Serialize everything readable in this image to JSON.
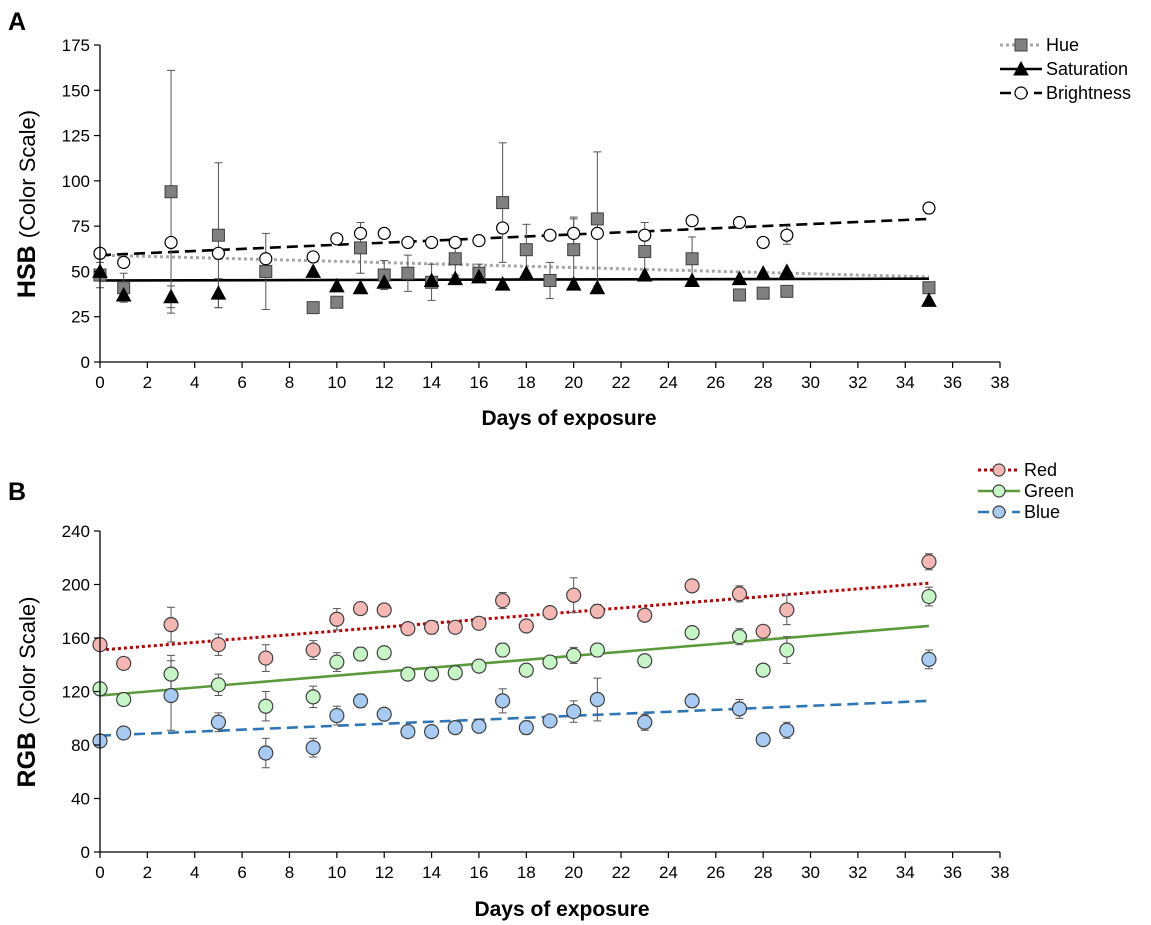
{
  "chart_data": [
    {
      "type": "scatter",
      "panel_label": "A",
      "ylabel_bold": "HSB",
      "ylabel_rest": "(Color Scale)",
      "xlabel": "Days of exposure",
      "xlim": [
        0,
        38
      ],
      "ylim": [
        0,
        175
      ],
      "xticks": [
        0,
        2,
        4,
        6,
        8,
        10,
        12,
        14,
        16,
        18,
        20,
        22,
        24,
        26,
        28,
        30,
        32,
        34,
        36,
        38
      ],
      "yticks": [
        0,
        25,
        50,
        75,
        100,
        125,
        150,
        175
      ],
      "legend_position": "top-right",
      "series": [
        {
          "name": "Hue",
          "marker": "square",
          "color": "#808080",
          "edge": "#404040",
          "line_style": "dotted",
          "line_color": "#a6a6a6",
          "trend": [
            [
              0,
              59
            ],
            [
              35,
              47
            ]
          ],
          "points": [
            {
              "x": 0,
              "y": 48,
              "err": 7
            },
            {
              "x": 1,
              "y": 41,
              "err": 8
            },
            {
              "x": 3,
              "y": 94,
              "err": 67
            },
            {
              "x": 5,
              "y": 70,
              "err": 40
            },
            {
              "x": 7,
              "y": 50,
              "err": 21
            },
            {
              "x": 9,
              "y": 30,
              "err": 0
            },
            {
              "x": 10,
              "y": 33,
              "err": 0
            },
            {
              "x": 11,
              "y": 63,
              "err": 14
            },
            {
              "x": 12,
              "y": 48,
              "err": 8
            },
            {
              "x": 13,
              "y": 49,
              "err": 10
            },
            {
              "x": 14,
              "y": 44,
              "err": 10
            },
            {
              "x": 15,
              "y": 57,
              "err": 9
            },
            {
              "x": 16,
              "y": 49,
              "err": 5
            },
            {
              "x": 17,
              "y": 88,
              "err": 33
            },
            {
              "x": 18,
              "y": 62,
              "err": 14
            },
            {
              "x": 19,
              "y": 45,
              "err": 10
            },
            {
              "x": 20,
              "y": 62,
              "err": 18
            },
            {
              "x": 21,
              "y": 79,
              "err": 37
            },
            {
              "x": 23,
              "y": 61,
              "err": 16
            },
            {
              "x": 25,
              "y": 57,
              "err": 12
            },
            {
              "x": 27,
              "y": 37,
              "err": 0
            },
            {
              "x": 28,
              "y": 38,
              "err": 0
            },
            {
              "x": 29,
              "y": 39,
              "err": 0
            },
            {
              "x": 35,
              "y": 41,
              "err": 0
            }
          ]
        },
        {
          "name": "Saturation",
          "marker": "triangle",
          "color": "#000000",
          "edge": "#000000",
          "line_style": "solid",
          "line_color": "#000000",
          "trend": [
            [
              0,
              45
            ],
            [
              35,
              46
            ]
          ],
          "points": [
            {
              "x": 0,
              "y": 50,
              "err": 0
            },
            {
              "x": 1,
              "y": 37,
              "err": 0
            },
            {
              "x": 3,
              "y": 36,
              "err": 6
            },
            {
              "x": 5,
              "y": 38,
              "err": 8
            },
            {
              "x": 9,
              "y": 50,
              "err": 0
            },
            {
              "x": 10,
              "y": 42,
              "err": 0
            },
            {
              "x": 11,
              "y": 41,
              "err": 0
            },
            {
              "x": 12,
              "y": 44,
              "err": 0
            },
            {
              "x": 14,
              "y": 45,
              "err": 0
            },
            {
              "x": 15,
              "y": 46,
              "err": 0
            },
            {
              "x": 16,
              "y": 47,
              "err": 0
            },
            {
              "x": 17,
              "y": 43,
              "err": 0
            },
            {
              "x": 18,
              "y": 49,
              "err": 0
            },
            {
              "x": 20,
              "y": 43,
              "err": 0
            },
            {
              "x": 21,
              "y": 41,
              "err": 0
            },
            {
              "x": 23,
              "y": 48,
              "err": 0
            },
            {
              "x": 25,
              "y": 45,
              "err": 0
            },
            {
              "x": 27,
              "y": 46,
              "err": 0
            },
            {
              "x": 28,
              "y": 49,
              "err": 0
            },
            {
              "x": 29,
              "y": 50,
              "err": 0
            },
            {
              "x": 35,
              "y": 34,
              "err": 0
            }
          ]
        },
        {
          "name": "Brightness",
          "marker": "circle",
          "color": "#ffffff",
          "edge": "#000000",
          "line_style": "dashed",
          "line_color": "#000000",
          "trend": [
            [
              0,
              59
            ],
            [
              35,
              79
            ]
          ],
          "points": [
            {
              "x": 0,
              "y": 60,
              "err": 0
            },
            {
              "x": 1,
              "y": 55,
              "err": 0
            },
            {
              "x": 3,
              "y": 66,
              "err": 0
            },
            {
              "x": 5,
              "y": 60,
              "err": 0
            },
            {
              "x": 7,
              "y": 57,
              "err": 0
            },
            {
              "x": 9,
              "y": 58,
              "err": 0
            },
            {
              "x": 10,
              "y": 68,
              "err": 0
            },
            {
              "x": 11,
              "y": 71,
              "err": 6
            },
            {
              "x": 12,
              "y": 71,
              "err": 0
            },
            {
              "x": 13,
              "y": 66,
              "err": 0
            },
            {
              "x": 14,
              "y": 66,
              "err": 0
            },
            {
              "x": 15,
              "y": 66,
              "err": 0
            },
            {
              "x": 16,
              "y": 67,
              "err": 0
            },
            {
              "x": 17,
              "y": 74,
              "err": 0
            },
            {
              "x": 19,
              "y": 70,
              "err": 0
            },
            {
              "x": 20,
              "y": 71,
              "err": 8
            },
            {
              "x": 21,
              "y": 71,
              "err": 0
            },
            {
              "x": 23,
              "y": 70,
              "err": 0
            },
            {
              "x": 25,
              "y": 78,
              "err": 0
            },
            {
              "x": 27,
              "y": 77,
              "err": 0
            },
            {
              "x": 28,
              "y": 66,
              "err": 0
            },
            {
              "x": 29,
              "y": 70,
              "err": 5
            },
            {
              "x": 35,
              "y": 85,
              "err": 0
            }
          ]
        }
      ]
    },
    {
      "type": "scatter",
      "panel_label": "B",
      "ylabel_bold": "RGB",
      "ylabel_rest": "(Color Scale)",
      "xlabel": "Days of exposure",
      "xlim": [
        0,
        38
      ],
      "ylim": [
        0,
        240
      ],
      "xticks": [
        0,
        2,
        4,
        6,
        8,
        10,
        12,
        14,
        16,
        18,
        20,
        22,
        24,
        26,
        28,
        30,
        32,
        34,
        36,
        38
      ],
      "yticks": [
        0,
        40,
        80,
        120,
        160,
        200,
        240
      ],
      "legend_position": "top-right",
      "series": [
        {
          "name": "Red",
          "marker": "circle",
          "color": "#f4b7b4",
          "edge": "#404040",
          "line_style": "dotted",
          "line_color": "#c00000",
          "trend": [
            [
              0,
              151
            ],
            [
              35,
              201
            ]
          ],
          "points": [
            {
              "x": 0,
              "y": 155,
              "err": 0
            },
            {
              "x": 1,
              "y": 141,
              "err": 0
            },
            {
              "x": 3,
              "y": 170,
              "err": 13
            },
            {
              "x": 5,
              "y": 155,
              "err": 8
            },
            {
              "x": 7,
              "y": 145,
              "err": 10
            },
            {
              "x": 9,
              "y": 151,
              "err": 7
            },
            {
              "x": 10,
              "y": 174,
              "err": 8
            },
            {
              "x": 11,
              "y": 182,
              "err": 4
            },
            {
              "x": 12,
              "y": 181,
              "err": 0
            },
            {
              "x": 13,
              "y": 167,
              "err": 4
            },
            {
              "x": 14,
              "y": 168,
              "err": 5
            },
            {
              "x": 15,
              "y": 168,
              "err": 0
            },
            {
              "x": 16,
              "y": 171,
              "err": 4
            },
            {
              "x": 17,
              "y": 188,
              "err": 6
            },
            {
              "x": 18,
              "y": 169,
              "err": 0
            },
            {
              "x": 19,
              "y": 179,
              "err": 0
            },
            {
              "x": 20,
              "y": 192,
              "err": 13
            },
            {
              "x": 21,
              "y": 180,
              "err": 5
            },
            {
              "x": 23,
              "y": 177,
              "err": 0
            },
            {
              "x": 25,
              "y": 199,
              "err": 0
            },
            {
              "x": 27,
              "y": 193,
              "err": 6
            },
            {
              "x": 28,
              "y": 165,
              "err": 0
            },
            {
              "x": 29,
              "y": 181,
              "err": 11
            },
            {
              "x": 35,
              "y": 217,
              "err": 6
            }
          ]
        },
        {
          "name": "Green",
          "marker": "circle",
          "color": "#c6f5c6",
          "edge": "#404040",
          "line_style": "solid",
          "line_color": "#5b9a3b",
          "trend": [
            [
              0,
              117
            ],
            [
              35,
              169
            ]
          ],
          "points": [
            {
              "x": 0,
              "y": 122,
              "err": 0
            },
            {
              "x": 1,
              "y": 114,
              "err": 0
            },
            {
              "x": 3,
              "y": 133,
              "err": 14
            },
            {
              "x": 5,
              "y": 125,
              "err": 8
            },
            {
              "x": 7,
              "y": 109,
              "err": 11
            },
            {
              "x": 9,
              "y": 116,
              "err": 8
            },
            {
              "x": 10,
              "y": 142,
              "err": 7
            },
            {
              "x": 11,
              "y": 148,
              "err": 5
            },
            {
              "x": 12,
              "y": 149,
              "err": 0
            },
            {
              "x": 13,
              "y": 133,
              "err": 4
            },
            {
              "x": 14,
              "y": 133,
              "err": 4
            },
            {
              "x": 15,
              "y": 134,
              "err": 0
            },
            {
              "x": 16,
              "y": 139,
              "err": 4
            },
            {
              "x": 17,
              "y": 151,
              "err": 5
            },
            {
              "x": 18,
              "y": 136,
              "err": 4
            },
            {
              "x": 19,
              "y": 142,
              "err": 4
            },
            {
              "x": 20,
              "y": 147,
              "err": 6
            },
            {
              "x": 21,
              "y": 151,
              "err": 5
            },
            {
              "x": 23,
              "y": 143,
              "err": 4
            },
            {
              "x": 25,
              "y": 164,
              "err": 0
            },
            {
              "x": 27,
              "y": 161,
              "err": 6
            },
            {
              "x": 28,
              "y": 136,
              "err": 0
            },
            {
              "x": 29,
              "y": 151,
              "err": 10
            },
            {
              "x": 35,
              "y": 191,
              "err": 7
            }
          ]
        },
        {
          "name": "Blue",
          "marker": "circle",
          "color": "#a7cbf3",
          "edge": "#404040",
          "line_style": "dashed",
          "line_color": "#2e75b6",
          "trend": [
            [
              0,
              87
            ],
            [
              35,
              113
            ]
          ],
          "points": [
            {
              "x": 0,
              "y": 83,
              "err": 0
            },
            {
              "x": 1,
              "y": 89,
              "err": 0
            },
            {
              "x": 3,
              "y": 117,
              "err": 26
            },
            {
              "x": 5,
              "y": 97,
              "err": 7
            },
            {
              "x": 7,
              "y": 74,
              "err": 11
            },
            {
              "x": 9,
              "y": 78,
              "err": 7
            },
            {
              "x": 10,
              "y": 102,
              "err": 7
            },
            {
              "x": 11,
              "y": 113,
              "err": 5
            },
            {
              "x": 12,
              "y": 103,
              "err": 0
            },
            {
              "x": 13,
              "y": 90,
              "err": 4
            },
            {
              "x": 14,
              "y": 90,
              "err": 4
            },
            {
              "x": 15,
              "y": 93,
              "err": 4
            },
            {
              "x": 16,
              "y": 94,
              "err": 0
            },
            {
              "x": 17,
              "y": 113,
              "err": 9
            },
            {
              "x": 18,
              "y": 93,
              "err": 5
            },
            {
              "x": 19,
              "y": 98,
              "err": 4
            },
            {
              "x": 20,
              "y": 105,
              "err": 8
            },
            {
              "x": 21,
              "y": 114,
              "err": 16
            },
            {
              "x": 23,
              "y": 97,
              "err": 6
            },
            {
              "x": 25,
              "y": 113,
              "err": 5
            },
            {
              "x": 27,
              "y": 107,
              "err": 7
            },
            {
              "x": 28,
              "y": 84,
              "err": 0
            },
            {
              "x": 29,
              "y": 91,
              "err": 6
            },
            {
              "x": 35,
              "y": 144,
              "err": 7
            }
          ]
        }
      ]
    }
  ]
}
